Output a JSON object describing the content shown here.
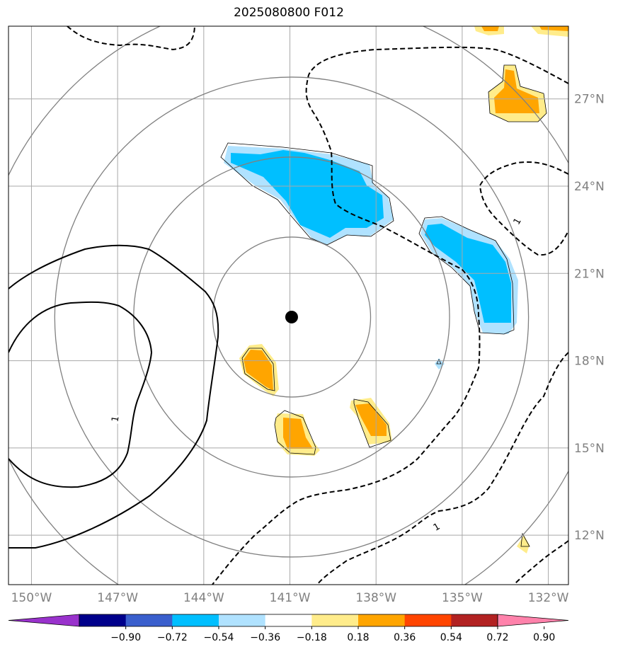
{
  "title": "2025080800 F012",
  "map": {
    "lon_range": [
      -150.8,
      -131.3
    ],
    "lat_range": [
      10.3,
      29.5
    ],
    "center_marker": {
      "lon": -140.94,
      "lat": 19.5
    },
    "range_rings_deg": [
      2.75,
      5.5,
      8.25,
      11
    ],
    "lon_ticks": [
      {
        "value": -150,
        "label": "150°W"
      },
      {
        "value": -147,
        "label": "147°W"
      },
      {
        "value": -144,
        "label": "144°W"
      },
      {
        "value": -141,
        "label": "141°W"
      },
      {
        "value": -138,
        "label": "138°W"
      },
      {
        "value": -135,
        "label": "135°W"
      },
      {
        "value": -132,
        "label": "132°W"
      }
    ],
    "lat_ticks": [
      {
        "value": 12,
        "label": "12°N"
      },
      {
        "value": 15,
        "label": "15°N"
      },
      {
        "value": 18,
        "label": "18°N"
      },
      {
        "value": 21,
        "label": "21°N"
      },
      {
        "value": 24,
        "label": "24°N"
      },
      {
        "value": 27,
        "label": "27°N"
      }
    ],
    "contour_labels": [
      {
        "text": "1",
        "lon": -147.1,
        "lat": 16.0,
        "rot": -80
      },
      {
        "text": "1",
        "lon": -133.1,
        "lat": 22.8,
        "rot": -60
      },
      {
        "text": "1",
        "lon": -135.9,
        "lat": 12.3,
        "rot": -30
      }
    ]
  },
  "colorbar": {
    "colors": [
      "#9932cc",
      "#00008b",
      "#3a5fcd",
      "#00bfff",
      "#b0e2ff",
      "#ffffff",
      "#ffec8b",
      "#ffa500",
      "#ff4500",
      "#b22222",
      "#ff82ab"
    ],
    "tick_labels": [
      "−0.90",
      "−0.72",
      "−0.54",
      "−0.36",
      "−0.18",
      "0.18",
      "0.36",
      "0.54",
      "0.72",
      "0.90"
    ]
  }
}
